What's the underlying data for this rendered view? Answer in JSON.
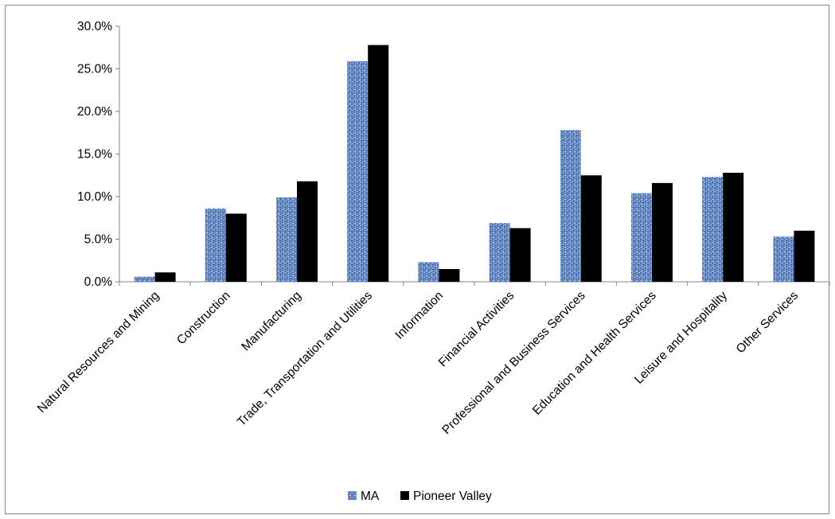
{
  "chart_data": {
    "type": "bar",
    "title": "",
    "xlabel": "",
    "ylabel": "",
    "ylim": [
      0,
      30
    ],
    "y_tick_format": "percent_one_decimal",
    "y_ticks": [
      "0.0%",
      "5.0%",
      "10.0%",
      "15.0%",
      "20.0%",
      "25.0%",
      "30.0%"
    ],
    "grid": false,
    "legend_position": "bottom",
    "categories": [
      "Natural Resources and Mining",
      "Construction",
      "Manufacturing",
      "Trade, Transportation and Utilities",
      "Information",
      "Financial Activities",
      "Professional and Business Services",
      "Education and Health Services",
      "Leisure and Hospitality",
      "Other Services"
    ],
    "series": [
      {
        "name": "MA",
        "color": "#4f81bd",
        "pattern": "textured",
        "values": [
          0.6,
          8.6,
          9.9,
          25.9,
          2.3,
          6.9,
          17.8,
          10.4,
          12.3,
          5.3
        ]
      },
      {
        "name": "Pioneer Valley",
        "color": "#000000",
        "pattern": "solid",
        "values": [
          1.1,
          8.0,
          11.8,
          27.8,
          1.5,
          6.3,
          12.5,
          11.6,
          12.8,
          6.0
        ]
      }
    ]
  }
}
